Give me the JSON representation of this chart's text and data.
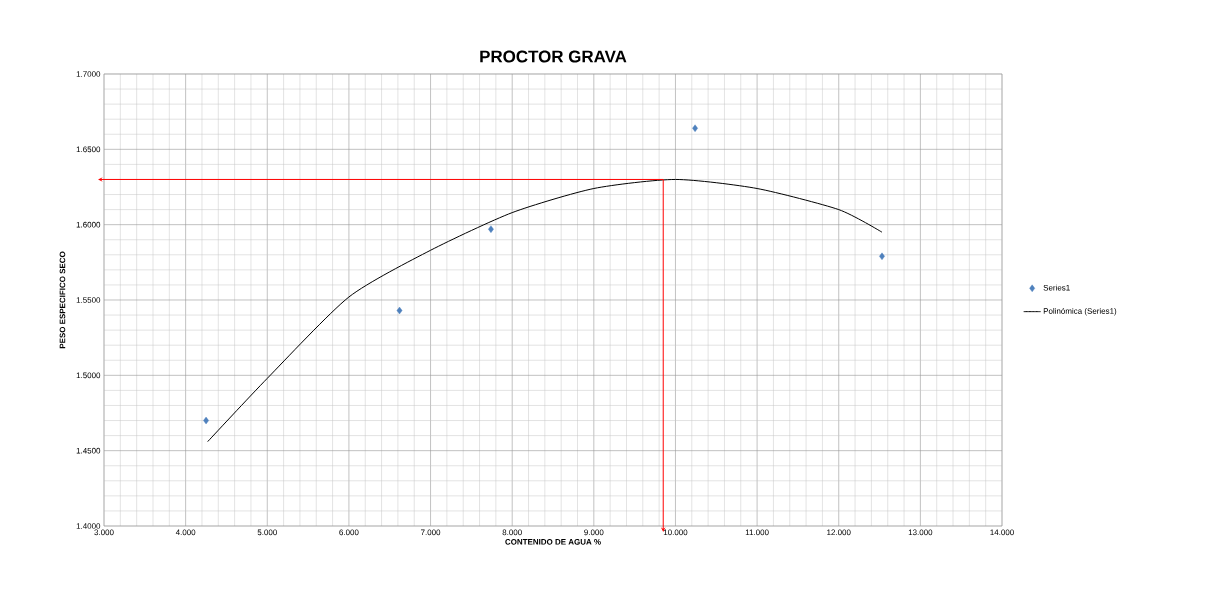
{
  "chart_data": {
    "type": "scatter",
    "title": "PROCTOR GRAVA",
    "xlabel": "CONTENIDO DE AGUA %",
    "ylabel": "PESO ESPECIFICO SECO",
    "xlim": [
      3,
      14
    ],
    "ylim": [
      1.4,
      1.7
    ],
    "xticks": [
      {
        "value": 3,
        "label": "3.000"
      },
      {
        "value": 4,
        "label": "4.000"
      },
      {
        "value": 5,
        "label": "5.000"
      },
      {
        "value": 6,
        "label": "6.000"
      },
      {
        "value": 7,
        "label": "7.000"
      },
      {
        "value": 8,
        "label": "8.000"
      },
      {
        "value": 9,
        "label": "9.000"
      },
      {
        "value": 10,
        "label": "10.000"
      },
      {
        "value": 11,
        "label": "11.000"
      },
      {
        "value": 12,
        "label": "12.000"
      },
      {
        "value": 13,
        "label": "13.000"
      },
      {
        "value": 14,
        "label": "14.000"
      }
    ],
    "yticks": [
      {
        "value": 1.4,
        "label": "1.4000"
      },
      {
        "value": 1.45,
        "label": "1.4500"
      },
      {
        "value": 1.5,
        "label": "1.5000"
      },
      {
        "value": 1.55,
        "label": "1.5500"
      },
      {
        "value": 1.6,
        "label": "1.6000"
      },
      {
        "value": 1.65,
        "label": "1.6500"
      },
      {
        "value": 1.7,
        "label": "1.7000"
      }
    ],
    "grid": true,
    "legend": "right",
    "series": [
      {
        "name": "Series1",
        "marker": "diamond",
        "color": "#4f81bd",
        "x": [
          4.25,
          6.62,
          7.74,
          10.24,
          12.53
        ],
        "values": [
          1.47,
          1.543,
          1.597,
          1.664,
          1.579
        ]
      },
      {
        "name": "Polinómica (Series1)",
        "type": "line",
        "marker": "none",
        "line_style": "solid",
        "color": "#000000",
        "x": [
          4.27,
          5,
          6,
          7,
          8,
          9,
          10,
          11,
          12,
          12.53
        ],
        "values": [
          1.456,
          1.498,
          1.552,
          1.583,
          1.608,
          1.624,
          1.63,
          1.624,
          1.61,
          1.595
        ]
      }
    ],
    "ref_lines": [
      {
        "axis": "x",
        "value": 9.85,
        "color": "#ff0000"
      },
      {
        "axis": "y",
        "value": 1.63,
        "color": "#ff0000"
      }
    ]
  }
}
